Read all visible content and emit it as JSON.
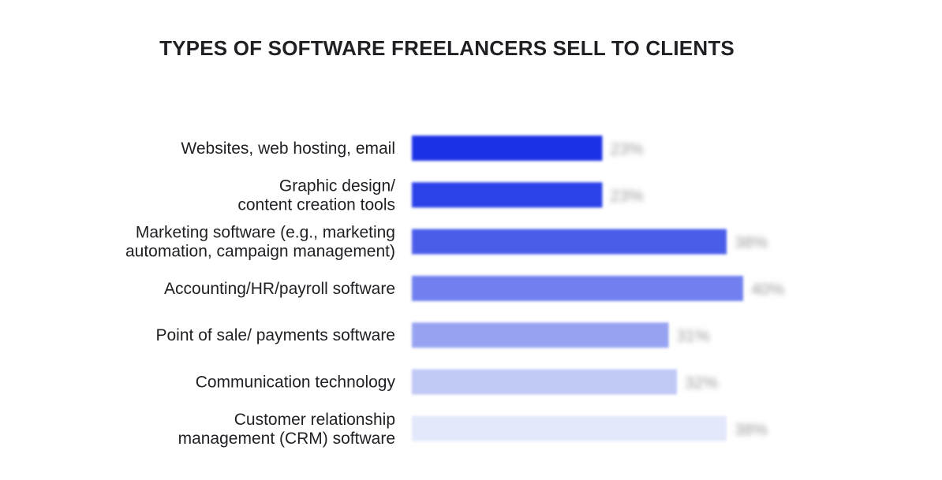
{
  "chart_data": {
    "type": "bar",
    "orientation": "horizontal",
    "title": "TYPES OF SOFTWARE FREELANCERS SELL TO CLIENTS",
    "xlabel": "",
    "ylabel": "",
    "categories": [
      [
        "Websites, web hosting, email"
      ],
      [
        "Graphic design/",
        "content creation tools"
      ],
      [
        "Marketing software (e.g., marketing",
        "automation, campaign management)"
      ],
      [
        "Accounting/HR/payroll software"
      ],
      [
        "Point of sale/ payments software"
      ],
      [
        "Communication technology"
      ],
      [
        "Customer relationship",
        "management (CRM) software"
      ]
    ],
    "values": [
      23,
      23,
      38,
      40,
      31,
      32,
      38
    ],
    "value_labels": [
      "23%",
      "23%",
      "38%",
      "40%",
      "31%",
      "32%",
      "38%"
    ],
    "bar_colors": [
      "#1a31e6",
      "#2b42e8",
      "#4a5de9",
      "#7080ee",
      "#97a3f1",
      "#c0c8f6",
      "#e4e8fb"
    ],
    "xlim": [
      0,
      100
    ],
    "grid": false,
    "legend": "none",
    "value_labels_blurred": true
  }
}
